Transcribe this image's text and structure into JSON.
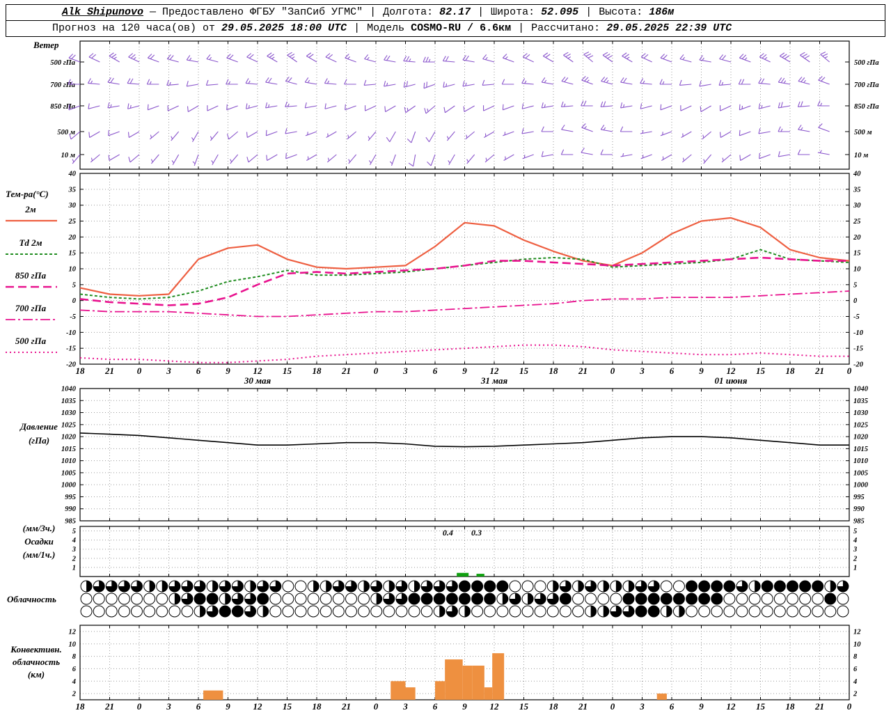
{
  "header": {
    "station": "Alk_Shipunovo",
    "provider": "— Предоставлено ФГБУ \"ЗапСиб УГМС\"",
    "lon_label": "Долгота:",
    "lon": "82.17",
    "lat_label": "Широта:",
    "lat": "52.095",
    "alt_label": "Высота:",
    "alt": "186м",
    "forecast_label": "Прогноз на 120 часа(ов) от",
    "forecast_time": "29.05.2025 18:00 UTC",
    "model_label": "Модель",
    "model": "COSMO-RU / 6.6км",
    "calc_label": "Рассчитано:",
    "calc_time": "29.05.2025 22:39 UTC"
  },
  "axis": {
    "hours_total": 78,
    "tick_step_h": 3,
    "tick_labels": [
      "18",
      "21",
      "0",
      "3",
      "6",
      "9",
      "12",
      "15",
      "18",
      "21",
      "0",
      "3",
      "6",
      "9",
      "12",
      "15",
      "18",
      "21",
      "0",
      "3",
      "6",
      "9",
      "12",
      "15",
      "18",
      "21",
      "0"
    ],
    "date_labels": [
      {
        "text": "30 мая",
        "hour": 18
      },
      {
        "text": "31 мая",
        "hour": 42
      },
      {
        "text": "01 июня",
        "hour": 66
      }
    ]
  },
  "chart_data": [
    {
      "type": "wind-barbs",
      "panel_label": "Ветер",
      "color": "#8a55cc",
      "step_hours": 2,
      "levels": [
        {
          "label": "500 гПа",
          "dirs": [
            290,
            295,
            300,
            295,
            290,
            285,
            280,
            285,
            290,
            295,
            300,
            305,
            300,
            295,
            290,
            285,
            280,
            275,
            270,
            275,
            280,
            285,
            290,
            295,
            300,
            305,
            310,
            305,
            300,
            295,
            290,
            285,
            280,
            285,
            290,
            295,
            300,
            305,
            310
          ],
          "spds": [
            20,
            20,
            25,
            25,
            20,
            20,
            15,
            15,
            20,
            20,
            25,
            25,
            20,
            20,
            15,
            15,
            20,
            25,
            25,
            20,
            20,
            15,
            15,
            20,
            20,
            25,
            30,
            30,
            25,
            20,
            20,
            15,
            15,
            20,
            25,
            25,
            30,
            30,
            25
          ]
        },
        {
          "label": "700 гПа",
          "dirs": [
            270,
            275,
            280,
            275,
            270,
            265,
            260,
            265,
            270,
            275,
            280,
            285,
            280,
            275,
            270,
            265,
            260,
            255,
            250,
            255,
            260,
            265,
            270,
            275,
            280,
            285,
            290,
            285,
            280,
            275,
            270,
            265,
            260,
            265,
            270,
            275,
            280,
            285,
            290
          ],
          "spds": [
            15,
            15,
            20,
            20,
            15,
            15,
            10,
            10,
            15,
            15,
            20,
            20,
            15,
            15,
            10,
            10,
            15,
            20,
            20,
            15,
            15,
            10,
            10,
            15,
            15,
            20,
            25,
            25,
            20,
            15,
            15,
            10,
            10,
            15,
            20,
            20,
            25,
            25,
            20
          ]
        },
        {
          "label": "850 гПа",
          "dirs": [
            250,
            255,
            260,
            255,
            250,
            245,
            240,
            245,
            250,
            255,
            260,
            265,
            260,
            255,
            250,
            245,
            240,
            235,
            230,
            235,
            240,
            245,
            250,
            255,
            260,
            265,
            270,
            265,
            260,
            255,
            250,
            245,
            240,
            245,
            250,
            255,
            260,
            265,
            270
          ],
          "spds": [
            10,
            10,
            15,
            15,
            10,
            10,
            10,
            10,
            10,
            15,
            15,
            15,
            10,
            10,
            10,
            10,
            10,
            15,
            15,
            10,
            10,
            10,
            10,
            10,
            15,
            15,
            20,
            20,
            15,
            10,
            10,
            10,
            10,
            10,
            15,
            15,
            20,
            20,
            15
          ]
        },
        {
          "label": "500 м",
          "dirs": [
            230,
            240,
            250,
            240,
            230,
            220,
            210,
            220,
            230,
            240,
            250,
            260,
            250,
            240,
            230,
            220,
            210,
            200,
            210,
            220,
            230,
            240,
            250,
            260,
            270,
            280,
            290,
            280,
            270,
            260,
            250,
            240,
            230,
            240,
            250,
            260,
            270,
            280,
            290
          ],
          "spds": [
            10,
            10,
            10,
            10,
            5,
            5,
            5,
            5,
            10,
            10,
            10,
            10,
            5,
            5,
            5,
            5,
            10,
            10,
            10,
            5,
            5,
            5,
            5,
            10,
            10,
            10,
            15,
            15,
            10,
            5,
            5,
            5,
            5,
            10,
            10,
            10,
            15,
            15,
            10
          ]
        },
        {
          "label": "10 м",
          "dirs": [
            220,
            230,
            240,
            230,
            220,
            210,
            200,
            210,
            220,
            230,
            240,
            250,
            240,
            230,
            220,
            210,
            200,
            190,
            200,
            210,
            220,
            230,
            240,
            250,
            260,
            270,
            280,
            270,
            260,
            250,
            240,
            230,
            220,
            230,
            240,
            250,
            260,
            270,
            280
          ],
          "spds": [
            5,
            5,
            10,
            10,
            5,
            5,
            5,
            5,
            5,
            10,
            10,
            10,
            5,
            5,
            5,
            5,
            5,
            10,
            10,
            5,
            5,
            5,
            5,
            5,
            10,
            10,
            10,
            10,
            5,
            5,
            5,
            5,
            5,
            5,
            10,
            10,
            10,
            10,
            5
          ]
        }
      ]
    },
    {
      "type": "line",
      "panel_label": "Тем-ра(°C)",
      "ylim": [
        -20,
        40
      ],
      "ytick_step": 5,
      "x_step_hours": 3,
      "series": [
        {
          "name": "2м",
          "color": "#ee5f41",
          "dash": "",
          "width": 2.2,
          "values": [
            4,
            2,
            1.5,
            2,
            13,
            16.5,
            17.5,
            13,
            10.5,
            10,
            10.5,
            11,
            17,
            24.5,
            23.5,
            19,
            15.5,
            12.5,
            11,
            15,
            21,
            25,
            26,
            23,
            16,
            13.5,
            12.5
          ]
        },
        {
          "name": "Td 2м",
          "color": "#1f8c1f",
          "dash": "4,3",
          "width": 2,
          "values": [
            2,
            1,
            0.5,
            1,
            3,
            6,
            7.5,
            9.5,
            8,
            8,
            8.5,
            9,
            10,
            11,
            12,
            13,
            13.5,
            13,
            10.5,
            11,
            11.5,
            12,
            13,
            16,
            13,
            12.5,
            12
          ]
        },
        {
          "name": "850 гПа",
          "color": "#e8128e",
          "dash": "12,6",
          "width": 2.6,
          "values": [
            0.5,
            -0.5,
            -1,
            -1.5,
            -1,
            1,
            5,
            8.5,
            9,
            8.5,
            9,
            9.5,
            10,
            11,
            12.5,
            12.5,
            12,
            11.5,
            11,
            11.5,
            12,
            12.5,
            13,
            13.5,
            13,
            12.5,
            12.5
          ]
        },
        {
          "name": "700 гПа",
          "color": "#e8128e",
          "dash": "14,4,3,4",
          "width": 1.8,
          "values": [
            -3,
            -3.5,
            -3.5,
            -3.5,
            -4,
            -4.5,
            -5,
            -5,
            -4.5,
            -4,
            -3.5,
            -3.5,
            -3,
            -2.5,
            -2,
            -1.5,
            -1,
            0,
            0.5,
            0.5,
            1,
            1,
            1,
            1.5,
            2,
            2.5,
            3
          ]
        },
        {
          "name": "500 гПа",
          "color": "#e8128e",
          "dash": "2,4",
          "width": 2,
          "values": [
            -18,
            -18.5,
            -18.5,
            -19,
            -19.5,
            -19.5,
            -19,
            -18.5,
            -17.5,
            -17,
            -16.5,
            -16,
            -15.5,
            -15,
            -14.5,
            -14,
            -14,
            -14.5,
            -15.5,
            -16,
            -16.5,
            -17,
            -17,
            -16.5,
            -17,
            -17.5,
            -17.5
          ]
        }
      ]
    },
    {
      "type": "line",
      "panel_labels": [
        "Давление",
        "(гПа)"
      ],
      "ylim": [
        985,
        1040
      ],
      "ytick_step": 5,
      "x_step_hours": 3,
      "series": [
        {
          "name": "Давление",
          "color": "#000000",
          "dash": "",
          "width": 1.6,
          "values": [
            1021.5,
            1021,
            1020.5,
            1019.5,
            1018.5,
            1017.5,
            1016.5,
            1016.5,
            1017,
            1017.5,
            1017.5,
            1017,
            1016,
            1015.8,
            1016,
            1016.5,
            1017,
            1017.5,
            1018.5,
            1019.5,
            1020,
            1020,
            1019.5,
            1018.5,
            1017.5,
            1016.5,
            1016.5
          ]
        }
      ]
    },
    {
      "type": "bar",
      "panel_labels": [
        "(мм/3ч.)",
        "Осадки",
        "(мм/1ч.)"
      ],
      "ylim": [
        0,
        5.5
      ],
      "yticks": [
        1,
        2,
        3,
        4,
        5
      ],
      "color": "#10a010",
      "bars": [
        {
          "hour": 38.2,
          "width_h": 1.2,
          "value": 0.4
        },
        {
          "hour": 40.2,
          "width_h": 0.8,
          "value": 0.3
        }
      ],
      "annotations": [
        {
          "text": "0.4",
          "hour": 37.3
        },
        {
          "text": "0.3",
          "hour": 40.2
        }
      ]
    },
    {
      "type": "symbols",
      "panel_label": "Облачность",
      "fill_scale": "0=clear 4=overcast, quarters",
      "rows": [
        "2333322333233233002233232323334444000232322233004444324444423",
        "0000000234423340000000023344444442323340000444444440000000040",
        "0000000002344320000000000000232000000000223344220000000000000"
      ]
    },
    {
      "type": "bar",
      "panel_labels": [
        "Конвективн.",
        "облачность",
        "(км)"
      ],
      "ylim": [
        1,
        13
      ],
      "yticks": [
        2,
        4,
        6,
        8,
        10,
        12
      ],
      "color": "#ee9040",
      "bars": [
        {
          "hour": 12.5,
          "width_h": 2.0,
          "value": 2.5
        },
        {
          "hour": 31.5,
          "width_h": 1.5,
          "value": 4
        },
        {
          "hour": 33.0,
          "width_h": 1.0,
          "value": 3
        },
        {
          "hour": 36.0,
          "width_h": 1.0,
          "value": 4
        },
        {
          "hour": 37.0,
          "width_h": 1.8,
          "value": 7.5
        },
        {
          "hour": 38.8,
          "width_h": 1.0,
          "value": 6.5
        },
        {
          "hour": 39.8,
          "width_h": 1.2,
          "value": 6.5
        },
        {
          "hour": 41.0,
          "width_h": 0.8,
          "value": 3
        },
        {
          "hour": 41.8,
          "width_h": 1.2,
          "value": 8.5
        },
        {
          "hour": 58.5,
          "width_h": 1.0,
          "value": 2
        }
      ]
    }
  ]
}
